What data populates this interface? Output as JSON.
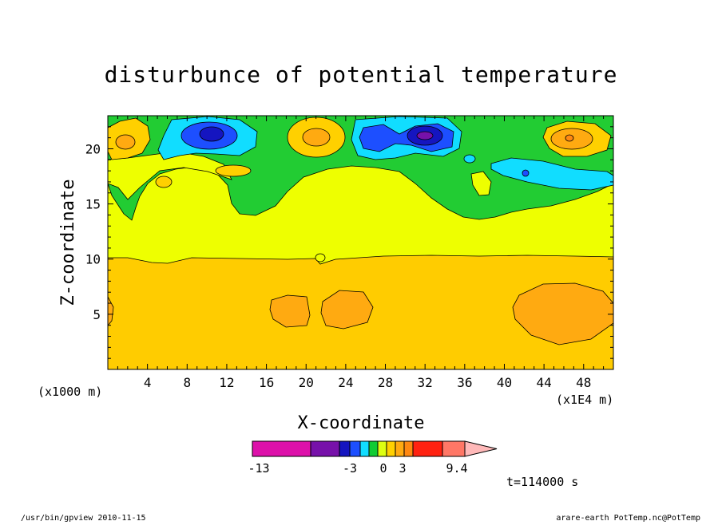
{
  "chart_data": {
    "type": "heatmap",
    "title": "disturbunce of potential temperature",
    "xlabel": "X-coordinate",
    "ylabel": "Z-coordinate",
    "x_units_left": "(x1000 m)",
    "x_units_right": "(x1E4 m)",
    "xlim": [
      0,
      51
    ],
    "ylim": [
      0,
      23
    ],
    "x_ticks": [
      4,
      8,
      12,
      16,
      20,
      24,
      28,
      32,
      36,
      40,
      44,
      48
    ],
    "y_ticks": [
      5,
      10,
      15,
      20
    ],
    "colorbar": {
      "colors": [
        "#dd11aa",
        "#7711aa",
        "#1515c0",
        "#1d4fff",
        "#11ddff",
        "#11cc33",
        "#ddff11",
        "#ffd000",
        "#ffaa11",
        "#ff8811",
        "#ff2211",
        "#ff7766",
        "#ffb9b9"
      ],
      "labels": [
        "-13",
        "-3",
        "0",
        "3",
        "9.4"
      ],
      "label_positions": [
        "start",
        "b3",
        "b6",
        "b8",
        "b12"
      ]
    },
    "regions": [
      {
        "level": "orange_low",
        "color": "#ffcc00",
        "note": "z 0-10"
      },
      {
        "level": "yellow",
        "color": "#eeff00",
        "note": "z 10-16"
      },
      {
        "level": "green",
        "color": "#22cc33",
        "note": "z 16-23 upper band"
      }
    ]
  },
  "annotation_time": "t=114000 s",
  "footer_left": "/usr/bin/gpview   2010-11-15",
  "footer_right": "arare-earth_PotTemp.nc@PotTemp",
  "colors": {
    "level_m13": "#dd11aa",
    "level_m9": "#7711aa",
    "level_m5": "#1515c0",
    "level_m4": "#1d4fff",
    "level_m2": "#11ddff",
    "level_m1": "#11cc33",
    "level_0": "#ddff11",
    "level_1": "#ffd000",
    "level_2": "#ffaa11",
    "level_3": "#ff8811",
    "level_5": "#ff2211",
    "level_7": "#ff7766",
    "level_9": "#ffb9b9"
  }
}
